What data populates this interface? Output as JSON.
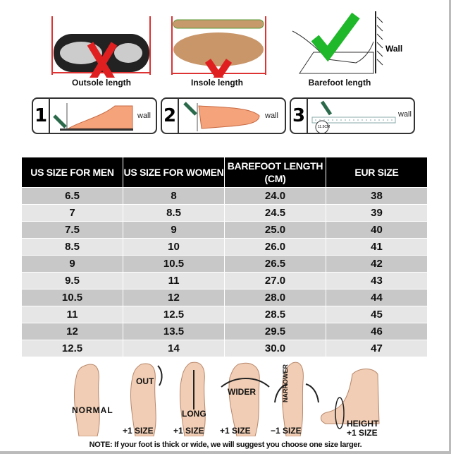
{
  "measure": {
    "outsole_label": "Outsole length",
    "insole_label": "Insole length",
    "barefoot_label": "Barefoot length",
    "wall_label": "Wall"
  },
  "steps": [
    {
      "number": "1",
      "wall": "wall"
    },
    {
      "number": "2",
      "wall": "wall"
    },
    {
      "number": "3",
      "wall": "wall",
      "ruler_label": "11.5CM"
    }
  ],
  "table": {
    "headers": [
      "US SIZE FOR MEN",
      "US SIZE FOR WOMEN",
      "BAREFOOT LENGTH (CM)",
      "EUR SIZE"
    ],
    "rows": [
      [
        "6.5",
        "8",
        "24.0",
        "38"
      ],
      [
        "7",
        "8.5",
        "24.5",
        "39"
      ],
      [
        "7.5",
        "9",
        "25.0",
        "40"
      ],
      [
        "8.5",
        "10",
        "26.0",
        "41"
      ],
      [
        "9",
        "10.5",
        "26.5",
        "42"
      ],
      [
        "9.5",
        "11",
        "27.0",
        "43"
      ],
      [
        "10.5",
        "12",
        "28.0",
        "44"
      ],
      [
        "11",
        "12.5",
        "28.5",
        "45"
      ],
      [
        "12",
        "13.5",
        "29.5",
        "46"
      ],
      [
        "12.5",
        "14",
        "30.0",
        "47"
      ]
    ]
  },
  "foot_types": [
    {
      "label": "NORMAL",
      "size": ""
    },
    {
      "label": "OUT",
      "size": "+1 SIZE"
    },
    {
      "label": "LONG",
      "size": "+1 SIZE"
    },
    {
      "label": "WIDER",
      "size": "+1 SIZE"
    },
    {
      "label": "NARROWER",
      "size": "−1 SIZE"
    },
    {
      "label": "HEIGHT",
      "size": "+1 SIZE"
    }
  ],
  "note": "NOTE: If your foot is thick or wide, we will suggest you choose one size larger.",
  "colors": {
    "cross": "#e02020",
    "check": "#1fb82a",
    "header_bg": "#000000",
    "row_dark": "#c8c8c8",
    "row_light": "#e6e6e6"
  }
}
